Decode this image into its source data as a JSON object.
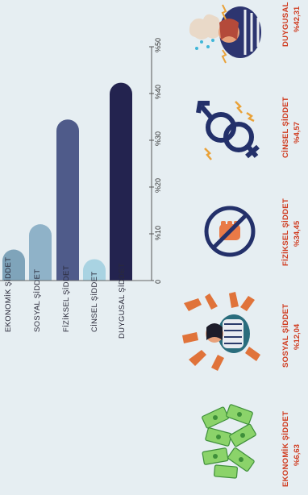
{
  "chart_data": {
    "type": "bar",
    "orientation": "vertical-bars-rotated",
    "categories": [
      "EKONOMİK ŞİDDET",
      "SOSYAL ŞİDDET",
      "FİZİKSEL ŞİDDET",
      "CİNSEL ŞİDDET",
      "DUYGUSAL ŞİDDET"
    ],
    "values": [
      6.63,
      12.04,
      34.45,
      4.57,
      42.31
    ],
    "value_labels": [
      "%6,63",
      "%12,04",
      "%34,45",
      "%4,57",
      "%42,31"
    ],
    "ticks": [
      "0",
      "%10",
      "%20",
      "%30",
      "%40",
      "%50"
    ],
    "ylim": [
      0,
      50
    ],
    "colors": [
      "#7fa4ba",
      "#8fb2c8",
      "#4f5b8a",
      "#a9d3e2",
      "#23234f"
    ],
    "accent_text_color": "#d03a1e",
    "grid": false
  },
  "icons": [
    "money-icon",
    "pointing-hands-woman-icon",
    "no-violence-icon",
    "gender-symbols-icon",
    "distressed-woman-icon"
  ]
}
